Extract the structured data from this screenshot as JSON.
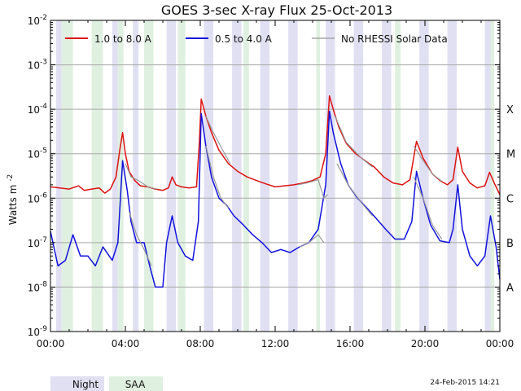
{
  "chart_data": {
    "type": "line",
    "title": "GOES 3-sec X-ray Flux   25-Oct-2013",
    "ylabel": "Watts m",
    "ylabel_sup": "-2",
    "y_scale": "log",
    "ylim": [
      1e-09,
      0.01
    ],
    "y_ticks": [
      {
        "base": "10",
        "exp": "-9"
      },
      {
        "base": "10",
        "exp": "-8"
      },
      {
        "base": "10",
        "exp": "-7"
      },
      {
        "base": "10",
        "exp": "-6"
      },
      {
        "base": "10",
        "exp": "-5"
      },
      {
        "base": "10",
        "exp": "-4"
      },
      {
        "base": "10",
        "exp": "-3"
      },
      {
        "base": "10",
        "exp": "-2"
      }
    ],
    "flare_classes": [
      {
        "label": "A",
        "flux": 1e-08
      },
      {
        "label": "B",
        "flux": 1e-07
      },
      {
        "label": "C",
        "flux": 1e-06
      },
      {
        "label": "M",
        "flux": 1e-05
      },
      {
        "label": "X",
        "flux": 0.0001
      }
    ],
    "x_unit": "hours UT",
    "xlim": [
      0,
      24
    ],
    "x_ticks": [
      "00:00",
      "04:00",
      "08:00",
      "12:00",
      "16:00",
      "20:00",
      "00:00"
    ],
    "grid": true,
    "legend_position": "top",
    "series": [
      {
        "name": "1.0 to 8.0 A",
        "color": "#dd1111",
        "points": [
          [
            0.0,
            1.8e-06
          ],
          [
            0.5,
            1.7e-06
          ],
          [
            1.0,
            1.6e-06
          ],
          [
            1.5,
            1.9e-06
          ],
          [
            1.8,
            1.5e-06
          ],
          [
            2.2,
            1.6e-06
          ],
          [
            2.6,
            1.7e-06
          ],
          [
            2.9,
            1.3e-06
          ],
          [
            3.2,
            1.6e-06
          ],
          [
            3.5,
            3e-06
          ],
          [
            3.7,
            1.2e-05
          ],
          [
            3.85,
            3e-05
          ],
          [
            4.0,
            1e-05
          ],
          [
            4.2,
            4e-06
          ],
          [
            4.5,
            2.5e-06
          ],
          [
            4.8,
            1.9e-06
          ],
          [
            5.2,
            1.8e-06
          ],
          [
            5.6,
            1.6e-06
          ],
          [
            6.0,
            1.5e-06
          ],
          [
            6.3,
            1.7e-06
          ],
          [
            6.5,
            3e-06
          ],
          [
            6.7,
            2e-06
          ],
          [
            7.0,
            1.8e-06
          ],
          [
            7.4,
            1.7e-06
          ],
          [
            7.8,
            1.8e-06
          ],
          [
            7.95,
            1.7e-05
          ],
          [
            8.05,
            0.00017
          ],
          [
            8.3,
            7e-05
          ],
          [
            8.6,
            3e-05
          ],
          [
            9.0,
            1.2e-05
          ],
          [
            9.5,
            6e-06
          ],
          [
            10.0,
            4e-06
          ],
          [
            10.5,
            3e-06
          ],
          [
            11.0,
            2.5e-06
          ],
          [
            11.5,
            2.1e-06
          ],
          [
            12.0,
            1.8e-06
          ],
          [
            12.5,
            1.9e-06
          ],
          [
            13.0,
            2e-06
          ],
          [
            13.5,
            2.2e-06
          ],
          [
            14.0,
            2.5e-06
          ],
          [
            14.4,
            3e-06
          ],
          [
            14.7,
            1e-05
          ],
          [
            14.9,
            0.0002
          ],
          [
            15.1,
            0.0001
          ],
          [
            15.4,
            4e-05
          ],
          [
            15.8,
            1.7e-05
          ],
          [
            16.3,
            1e-05
          ],
          [
            16.8,
            7e-06
          ],
          [
            17.3,
            5e-06
          ],
          [
            17.8,
            3e-06
          ],
          [
            18.3,
            2.2e-06
          ],
          [
            18.8,
            2e-06
          ],
          [
            19.2,
            2.6e-06
          ],
          [
            19.55,
            1.9e-05
          ],
          [
            19.9,
            8e-06
          ],
          [
            20.4,
            3.5e-06
          ],
          [
            20.8,
            2.5e-06
          ],
          [
            21.2,
            2e-06
          ],
          [
            21.5,
            2.6e-06
          ],
          [
            21.75,
            1.4e-05
          ],
          [
            22.0,
            4e-06
          ],
          [
            22.4,
            2.2e-06
          ],
          [
            22.8,
            1.7e-06
          ],
          [
            23.2,
            1.9e-06
          ],
          [
            23.45,
            3.8e-06
          ],
          [
            23.7,
            2.2e-06
          ],
          [
            24.0,
            1.2e-06
          ]
        ]
      },
      {
        "name": "0.5 to 4.0 A",
        "color": "#1111dd",
        "points": [
          [
            0.0,
            1.8e-07
          ],
          [
            0.4,
            3e-08
          ],
          [
            0.8,
            4e-08
          ],
          [
            1.2,
            1.5e-07
          ],
          [
            1.6,
            5e-08
          ],
          [
            2.0,
            5e-08
          ],
          [
            2.4,
            3e-08
          ],
          [
            2.8,
            8e-08
          ],
          [
            3.3,
            4e-08
          ],
          [
            3.6,
            1e-07
          ],
          [
            3.85,
            7e-06
          ],
          [
            4.1,
            1.5e-06
          ],
          [
            4.3,
            3e-07
          ],
          [
            4.6,
            1e-07
          ],
          [
            5.0,
            1e-07
          ],
          [
            5.3,
            3e-08
          ],
          [
            5.6,
            1e-08
          ],
          [
            6.0,
            1e-08
          ],
          [
            6.2,
            1e-07
          ],
          [
            6.5,
            4e-07
          ],
          [
            6.8,
            1e-07
          ],
          [
            7.2,
            5e-08
          ],
          [
            7.6,
            4e-08
          ],
          [
            7.9,
            3e-07
          ],
          [
            8.05,
            8e-05
          ],
          [
            8.3,
            1.5e-05
          ],
          [
            8.6,
            3e-06
          ],
          [
            9.0,
            1e-06
          ],
          [
            9.4,
            7e-07
          ],
          [
            9.8,
            4e-07
          ],
          [
            10.3,
            2.5e-07
          ],
          [
            10.8,
            1.5e-07
          ],
          [
            11.3,
            1e-07
          ],
          [
            11.8,
            6e-08
          ],
          [
            12.3,
            7e-08
          ],
          [
            12.8,
            6e-08
          ],
          [
            13.3,
            8e-08
          ],
          [
            13.8,
            1e-07
          ],
          [
            14.3,
            2e-07
          ],
          [
            14.7,
            2e-06
          ],
          [
            14.9,
            9e-05
          ],
          [
            15.1,
            3e-05
          ],
          [
            15.5,
            6e-06
          ],
          [
            15.9,
            2e-06
          ],
          [
            16.4,
            1e-06
          ],
          [
            16.9,
            6e-07
          ],
          [
            17.4,
            3.5e-07
          ],
          [
            17.9,
            2e-07
          ],
          [
            18.4,
            1.2e-07
          ],
          [
            18.9,
            1.2e-07
          ],
          [
            19.3,
            3e-07
          ],
          [
            19.55,
            4e-06
          ],
          [
            19.9,
            1e-06
          ],
          [
            20.3,
            2.5e-07
          ],
          [
            20.8,
            1.1e-07
          ],
          [
            21.3,
            1e-07
          ],
          [
            21.5,
            2e-07
          ],
          [
            21.75,
            2e-06
          ],
          [
            22.0,
            2e-07
          ],
          [
            22.4,
            5e-08
          ],
          [
            22.8,
            3e-08
          ],
          [
            23.2,
            5e-08
          ],
          [
            23.5,
            4e-07
          ],
          [
            23.8,
            8e-08
          ],
          [
            24.0,
            1.5e-08
          ]
        ]
      },
      {
        "name": "No RHESSI Solar Data",
        "color": "#999999",
        "segments": [
          [
            [
              4.0,
              6e-06
            ],
            [
              4.3,
              3e-06
            ],
            [
              4.7,
              2.5e-06
            ],
            [
              5.2,
              1.8e-06
            ],
            [
              5.7,
              1.6e-06
            ]
          ],
          [
            [
              8.3,
              7e-05
            ],
            [
              8.7,
              3e-05
            ],
            [
              9.2,
              1.2e-05
            ],
            [
              9.6,
              6e-06
            ]
          ],
          [
            [
              13.2,
              2e-06
            ],
            [
              13.7,
              2.2e-06
            ],
            [
              14.3,
              2.6e-06
            ],
            [
              14.6,
              1e-06
            ],
            [
              14.8,
              1.2e-06
            ]
          ],
          [
            [
              15.2,
              7e-05
            ],
            [
              15.8,
              1.8e-05
            ],
            [
              16.6,
              8e-06
            ],
            [
              17.2,
              5e-06
            ]
          ],
          [
            [
              19.4,
              1.5e-05
            ],
            [
              19.9,
              7e-06
            ],
            [
              20.4,
              3.5e-06
            ],
            [
              20.9,
              2.4e-06
            ]
          ],
          [
            [
              4.2,
              5e-07
            ],
            [
              4.6,
              1.5e-07
            ],
            [
              5.0,
              7e-08
            ],
            [
              5.4,
              3e-08
            ]
          ],
          [
            [
              8.3,
              1.5e-05
            ],
            [
              8.7,
              3e-06
            ],
            [
              9.1,
              1e-06
            ],
            [
              9.5,
              6e-07
            ]
          ],
          [
            [
              13.3,
              8e-08
            ],
            [
              13.8,
              1e-07
            ],
            [
              14.3,
              1.5e-07
            ],
            [
              14.6,
              1e-07
            ]
          ],
          [
            [
              15.3,
              6e-06
            ],
            [
              15.9,
              2e-06
            ],
            [
              16.6,
              8e-07
            ],
            [
              17.2,
              4e-07
            ]
          ],
          [
            [
              19.4,
              3e-06
            ],
            [
              19.9,
              1e-06
            ],
            [
              20.4,
              2.5e-07
            ],
            [
              20.9,
              1.2e-07
            ]
          ]
        ]
      }
    ],
    "shaded_intervals": {
      "night": [
        [
          0.3,
          0.6
        ],
        [
          3.3,
          3.6
        ],
        [
          4.4,
          4.7
        ],
        [
          6.2,
          6.7
        ],
        [
          8.2,
          8.7
        ],
        [
          9.7,
          10.2
        ],
        [
          11.2,
          11.7
        ],
        [
          12.7,
          13.2
        ],
        [
          14.7,
          15.2
        ],
        [
          16.2,
          16.7
        ],
        [
          17.7,
          18.2
        ],
        [
          19.7,
          20.2
        ],
        [
          21.2,
          21.7
        ],
        [
          23.2,
          23.5
        ]
      ],
      "saa": [
        [
          0.6,
          1.2
        ],
        [
          2.2,
          2.8
        ],
        [
          3.6,
          3.9
        ],
        [
          5.0,
          5.5
        ],
        [
          6.8,
          7.2
        ],
        [
          10.3,
          10.6
        ],
        [
          14.2,
          14.4
        ],
        [
          18.4,
          18.7
        ],
        [
          23.5,
          23.7
        ]
      ]
    }
  },
  "legend": {
    "items": [
      {
        "label": "1.0 to 8.0 A",
        "color": "#dd1111"
      },
      {
        "label": "0.5 to 4.0 A",
        "color": "#1111dd"
      },
      {
        "label": "No RHESSI Solar Data",
        "color": "#999999"
      }
    ]
  },
  "footer": {
    "night_label": "Night",
    "saa_label": "SAA",
    "night_color": "#e0e0f2",
    "saa_color": "#e0f0e0",
    "timestamp": "24-Feb-2015 14:21"
  }
}
